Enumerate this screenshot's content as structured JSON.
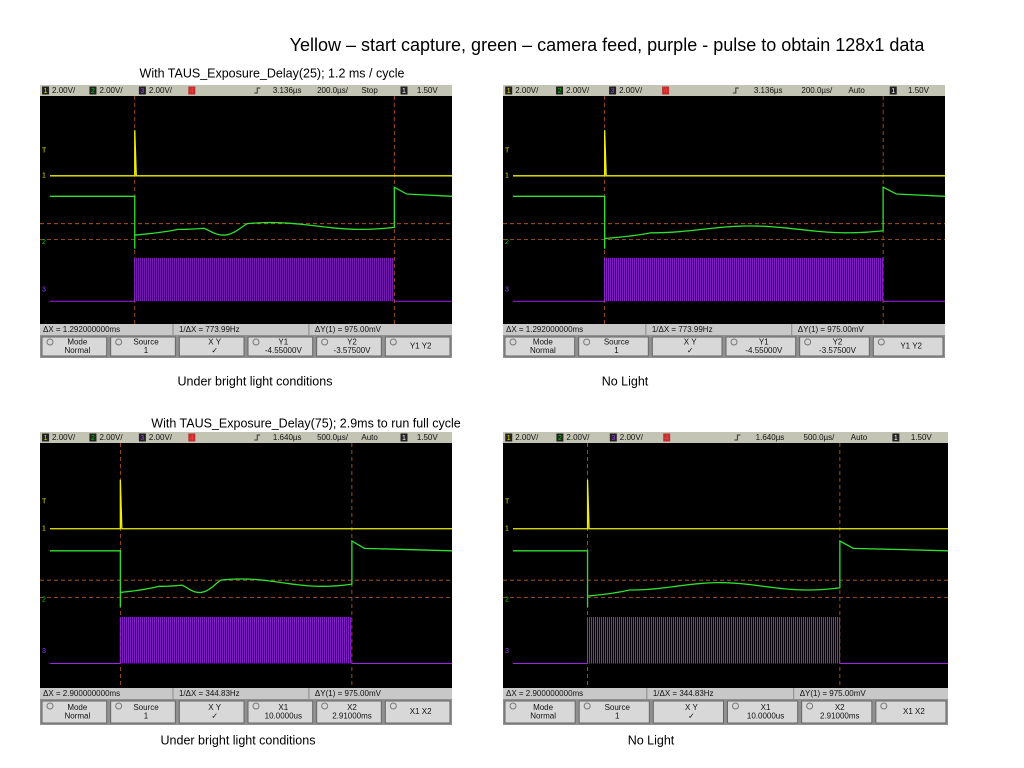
{
  "title": "Yellow – start capture, green – camera feed, purple  - pulse to obtain 128x1 data",
  "panels": [
    {
      "caption": "With TAUS_Exposure_Delay(25);  1.2 ms / cycle",
      "scopes": [
        {
          "label": "Under bright light conditions",
          "status": {
            "channels": [
              "1",
              "2",
              "3",
              "4"
            ],
            "scales": [
              "2.00V/",
              "2.00V/",
              "2.00V/"
            ],
            "delay": "3.136µs",
            "timebase": "200.0µs/",
            "mode": "Stop",
            "trigger_channel": "1",
            "level": "1.50V"
          },
          "markers": [
            "T",
            "1",
            "2",
            "3"
          ],
          "measurements": [
            "ΔX = 1.292000000ms",
            "1/ΔX = 773.99Hz",
            "ΔY(1) = 975.00mV"
          ],
          "softkeys": [
            [
              "Mode",
              "Normal"
            ],
            [
              "Source",
              "1"
            ],
            [
              "X      Y",
              "✓"
            ],
            [
              "Y1",
              "-4.55000V"
            ],
            [
              "Y2",
              "-3.57500V"
            ],
            [
              "Y1 Y2"
            ]
          ]
        },
        {
          "label": "No Light",
          "status": {
            "channels": [
              "1",
              "2",
              "3",
              "4"
            ],
            "scales": [
              "2.00V/",
              "2.00V/",
              "2.00V/"
            ],
            "delay": "3.136µs",
            "timebase": "200.0µs/",
            "mode": "Auto",
            "trigger_channel": "1",
            "level": "1.50V"
          },
          "markers": [
            "T",
            "1",
            "2",
            "3"
          ],
          "measurements": [
            "ΔX = 1.292000000ms",
            "1/ΔX = 773.99Hz",
            "ΔY(1) = 975.00mV"
          ],
          "softkeys": [
            [
              "Mode",
              "Normal"
            ],
            [
              "Source",
              "1"
            ],
            [
              "X      Y",
              "✓"
            ],
            [
              "Y1",
              "-4.55000V"
            ],
            [
              "Y2",
              "-3.57500V"
            ],
            [
              "Y1 Y2"
            ]
          ]
        }
      ]
    },
    {
      "caption": "With TAUS_Exposure_Delay(75);  2.9ms to run full cycle",
      "scopes": [
        {
          "label": "Under bright light conditions",
          "status": {
            "channels": [
              "1",
              "2",
              "3",
              "4"
            ],
            "scales": [
              "2.00V/",
              "2.00V/",
              "2.00V/"
            ],
            "delay": "1.640µs",
            "timebase": "500.0µs/",
            "mode": "Auto",
            "trigger_channel": "1",
            "level": "1.50V"
          },
          "markers": [
            "T",
            "1",
            "2",
            "3"
          ],
          "measurements": [
            "ΔX = 2.900000000ms",
            "1/ΔX = 344.83Hz",
            "ΔY(1) = 975.00mV"
          ],
          "softkeys": [
            [
              "Mode",
              "Normal"
            ],
            [
              "Source",
              "1"
            ],
            [
              "X      Y",
              "✓"
            ],
            [
              "X1",
              "10.0000us"
            ],
            [
              "X2",
              "2.91000ms"
            ],
            [
              "X1 X2"
            ]
          ]
        },
        {
          "label": "No Light",
          "status": {
            "channels": [
              "1",
              "2",
              "3",
              "4"
            ],
            "scales": [
              "2.00V/",
              "2.00V/",
              "2.00V/"
            ],
            "delay": "1.640µs",
            "timebase": "500.0µs/",
            "mode": "Auto",
            "trigger_channel": "1",
            "level": "1.50V"
          },
          "markers": [
            "T",
            "1",
            "2",
            "3"
          ],
          "measurements": [
            "ΔX = 2.900000000ms",
            "1/ΔX = 344.83Hz",
            "ΔY(1) = 975.00mV"
          ],
          "softkeys": [
            [
              "Mode",
              "Normal"
            ],
            [
              "Source",
              "1"
            ],
            [
              "X      Y",
              "✓"
            ],
            [
              "X1",
              "10.0000us"
            ],
            [
              "X2",
              "2.91000ms"
            ],
            [
              "X1 X2"
            ]
          ]
        }
      ]
    }
  ]
}
